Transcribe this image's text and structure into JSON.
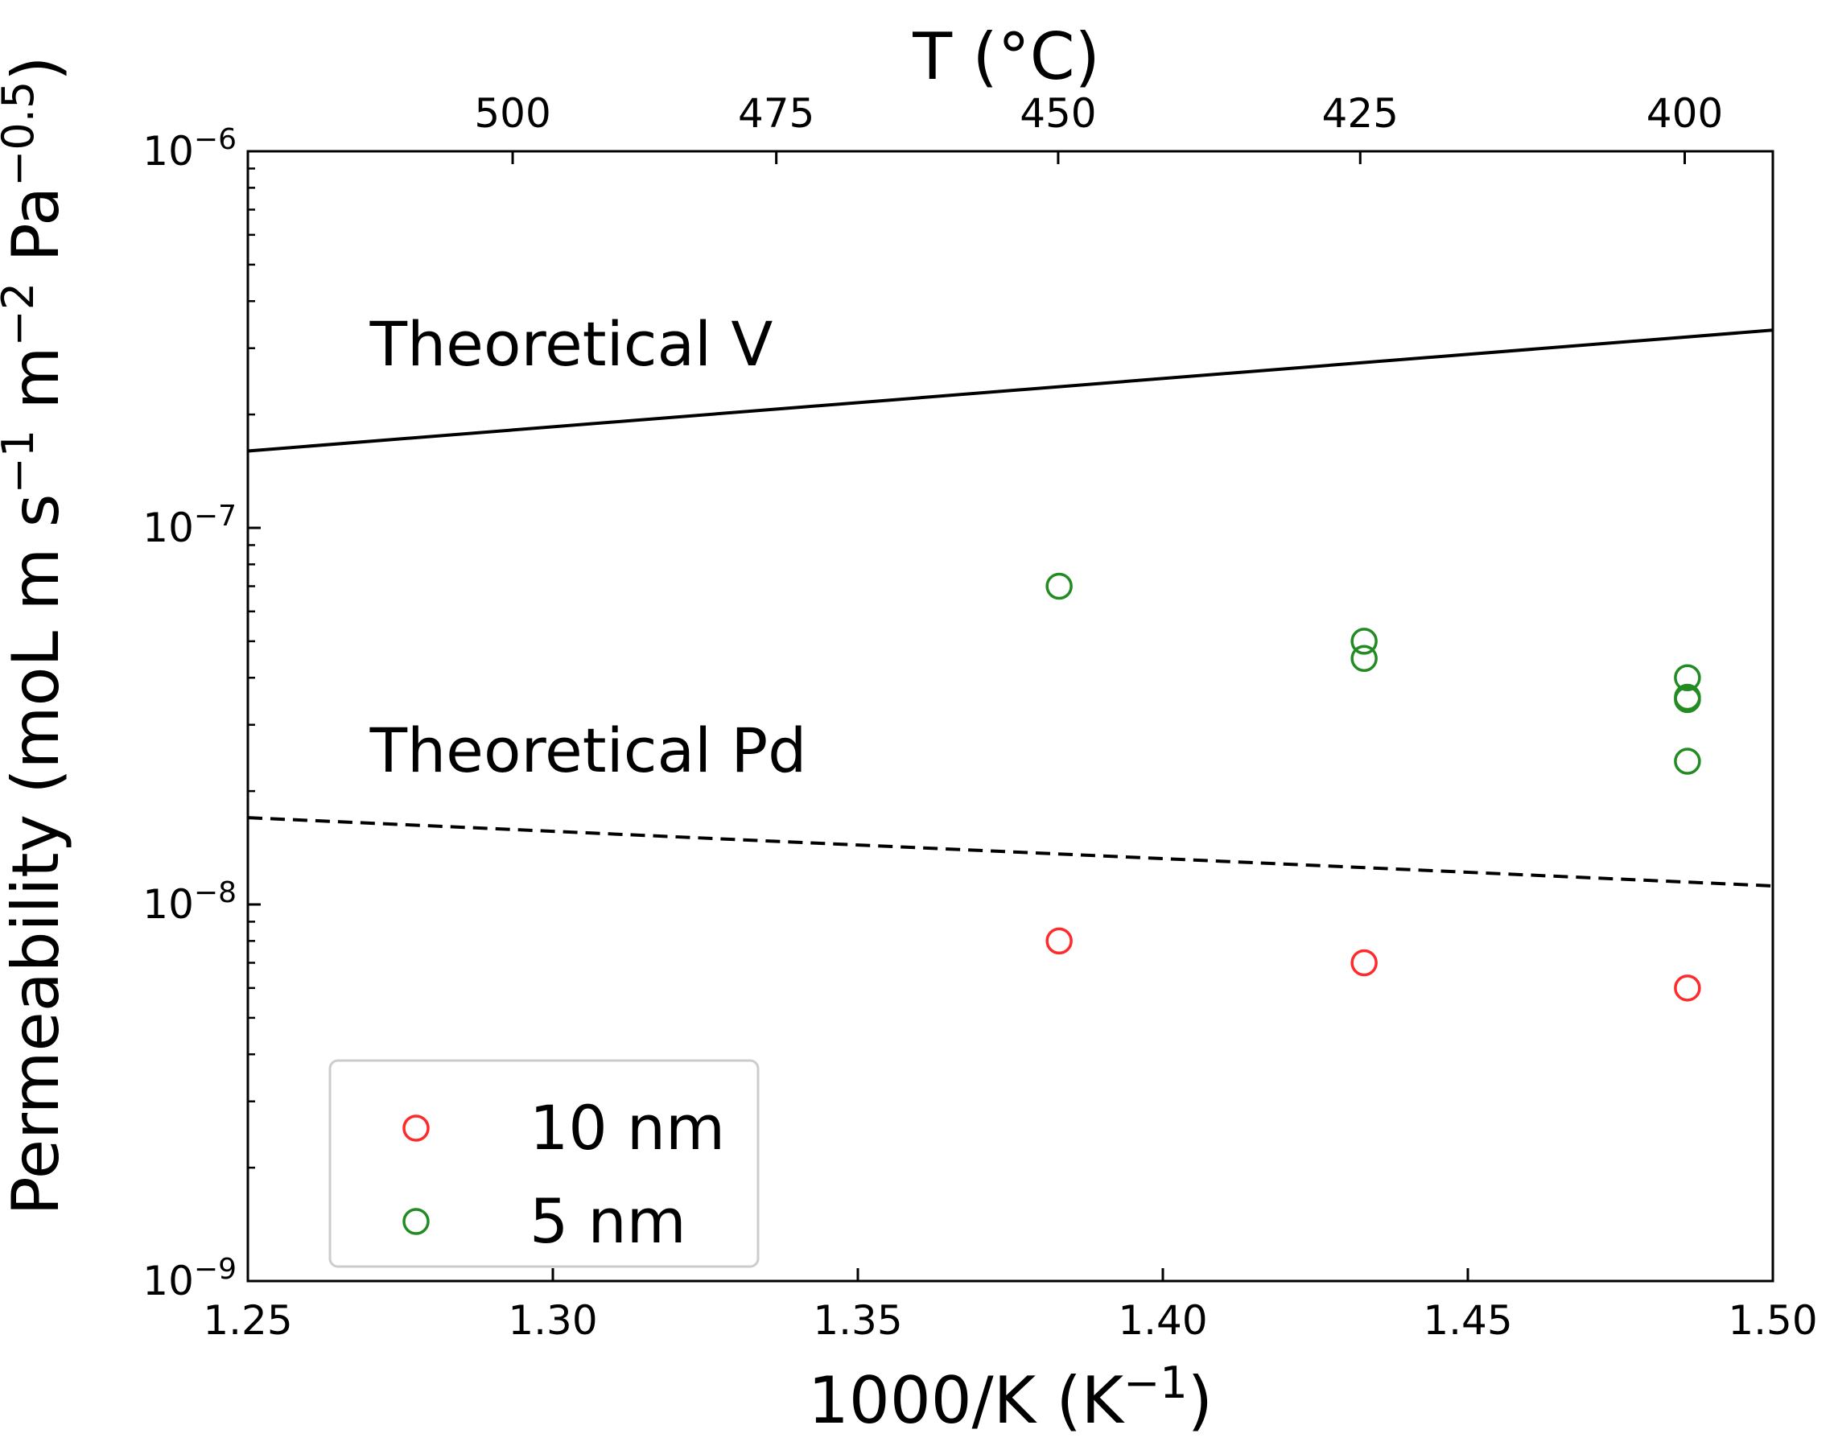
{
  "chart_data": {
    "type": "scatter",
    "title": "",
    "xlabel": "1000/K (K⁻¹)",
    "ylabel": "Permeability (moL m s⁻¹ m⁻² Pa⁻⁰˙⁵)",
    "top_xlabel": "T (°C)",
    "xlim": [
      1.25,
      1.5
    ],
    "ylim": [
      1e-09,
      1e-06
    ],
    "yscale": "log",
    "grid": false,
    "legend_position": "lower-left",
    "x_ticks": [
      {
        "value": 1.25,
        "label": "1.25"
      },
      {
        "value": 1.3,
        "label": "1.30"
      },
      {
        "value": 1.35,
        "label": "1.35"
      },
      {
        "value": 1.4,
        "label": "1.40"
      },
      {
        "value": 1.45,
        "label": "1.45"
      },
      {
        "value": 1.5,
        "label": "1.50"
      }
    ],
    "y_ticks": [
      {
        "value": 1e-09,
        "base": "10",
        "exp": "−9"
      },
      {
        "value": 1e-08,
        "base": "10",
        "exp": "−8"
      },
      {
        "value": 1e-07,
        "base": "10",
        "exp": "−7"
      },
      {
        "value": 1e-06,
        "base": "10",
        "exp": "−6"
      }
    ],
    "top_ticks": [
      {
        "celsius": 500,
        "label": "500"
      },
      {
        "celsius": 475,
        "label": "475"
      },
      {
        "celsius": 450,
        "label": "450"
      },
      {
        "celsius": 425,
        "label": "425"
      },
      {
        "celsius": 400,
        "label": "400"
      }
    ],
    "lines": [
      {
        "name": "Theoretical V",
        "style": "solid",
        "color": "#000000",
        "x": [
          1.25,
          1.5
        ],
        "y": [
          1.6e-07,
          3.35e-07
        ]
      },
      {
        "name": "Theoretical Pd",
        "style": "dashed",
        "color": "#000000",
        "x": [
          1.25,
          1.5
        ],
        "y": [
          1.7e-08,
          1.12e-08
        ]
      }
    ],
    "annotations": [
      {
        "text": "Theoretical V",
        "x": 1.27,
        "y": 2.7e-07
      },
      {
        "text": "Theoretical Pd",
        "x": 1.27,
        "y": 2.25e-08
      }
    ],
    "series": [
      {
        "name": "10 nm",
        "marker": "open-circle",
        "color": "#ff2a2a",
        "x": [
          1.383,
          1.433,
          1.486
        ],
        "y": [
          8e-09,
          7e-09,
          6e-09
        ]
      },
      {
        "name": "5 nm",
        "marker": "open-circle",
        "color": "#228b22",
        "x": [
          1.383,
          1.433,
          1.433,
          1.486,
          1.486,
          1.486,
          1.486
        ],
        "y": [
          7e-08,
          5e-08,
          4.5e-08,
          4e-08,
          3.55e-08,
          3.5e-08,
          2.4e-08
        ]
      }
    ]
  }
}
